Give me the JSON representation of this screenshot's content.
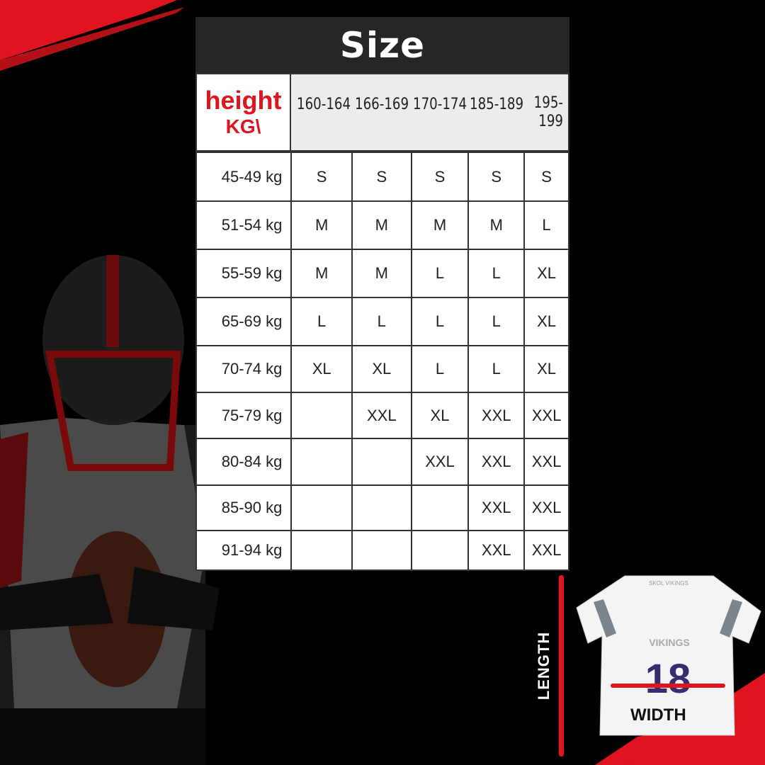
{
  "title": "Size",
  "corner": {
    "line1": "height",
    "line2": "KG\\"
  },
  "heights": [
    "160-164",
    "166-169",
    "170-174",
    "185-189",
    "195-199"
  ],
  "rows": [
    {
      "weight": "45-49 kg",
      "sizes": [
        "S",
        "S",
        "S",
        "S",
        "S"
      ]
    },
    {
      "weight": "51-54 kg",
      "sizes": [
        "M",
        "M",
        "M",
        "M",
        "L"
      ]
    },
    {
      "weight": "55-59 kg",
      "sizes": [
        "M",
        "M",
        "L",
        "L",
        "XL"
      ]
    },
    {
      "weight": "65-69 kg",
      "sizes": [
        "L",
        "L",
        "L",
        "L",
        "XL"
      ]
    },
    {
      "weight": "70-74 kg",
      "sizes": [
        "XL",
        "XL",
        "L",
        "L",
        "XL"
      ]
    },
    {
      "weight": "75-79 kg",
      "sizes": [
        "",
        "XXL",
        "XL",
        "XXL",
        "XXL"
      ]
    },
    {
      "weight": "80-84 kg",
      "sizes": [
        "",
        "",
        "XXL",
        "XXL",
        "XXL"
      ]
    },
    {
      "weight": "85-90 kg",
      "sizes": [
        "",
        "",
        "",
        "XXL",
        "XXL"
      ]
    },
    {
      "weight": "91-94  kg",
      "sizes": [
        "",
        "",
        "",
        "XXL",
        "XXL"
      ]
    }
  ],
  "jersey": {
    "length_label": "LENGTH",
    "width_label": "WIDTH",
    "team": "VIKINGS",
    "number": "18",
    "collar": "SKOL VIKINGS"
  },
  "colors": {
    "accent": "#e0141e",
    "header": "#262626",
    "number": "#3a2a6e"
  }
}
